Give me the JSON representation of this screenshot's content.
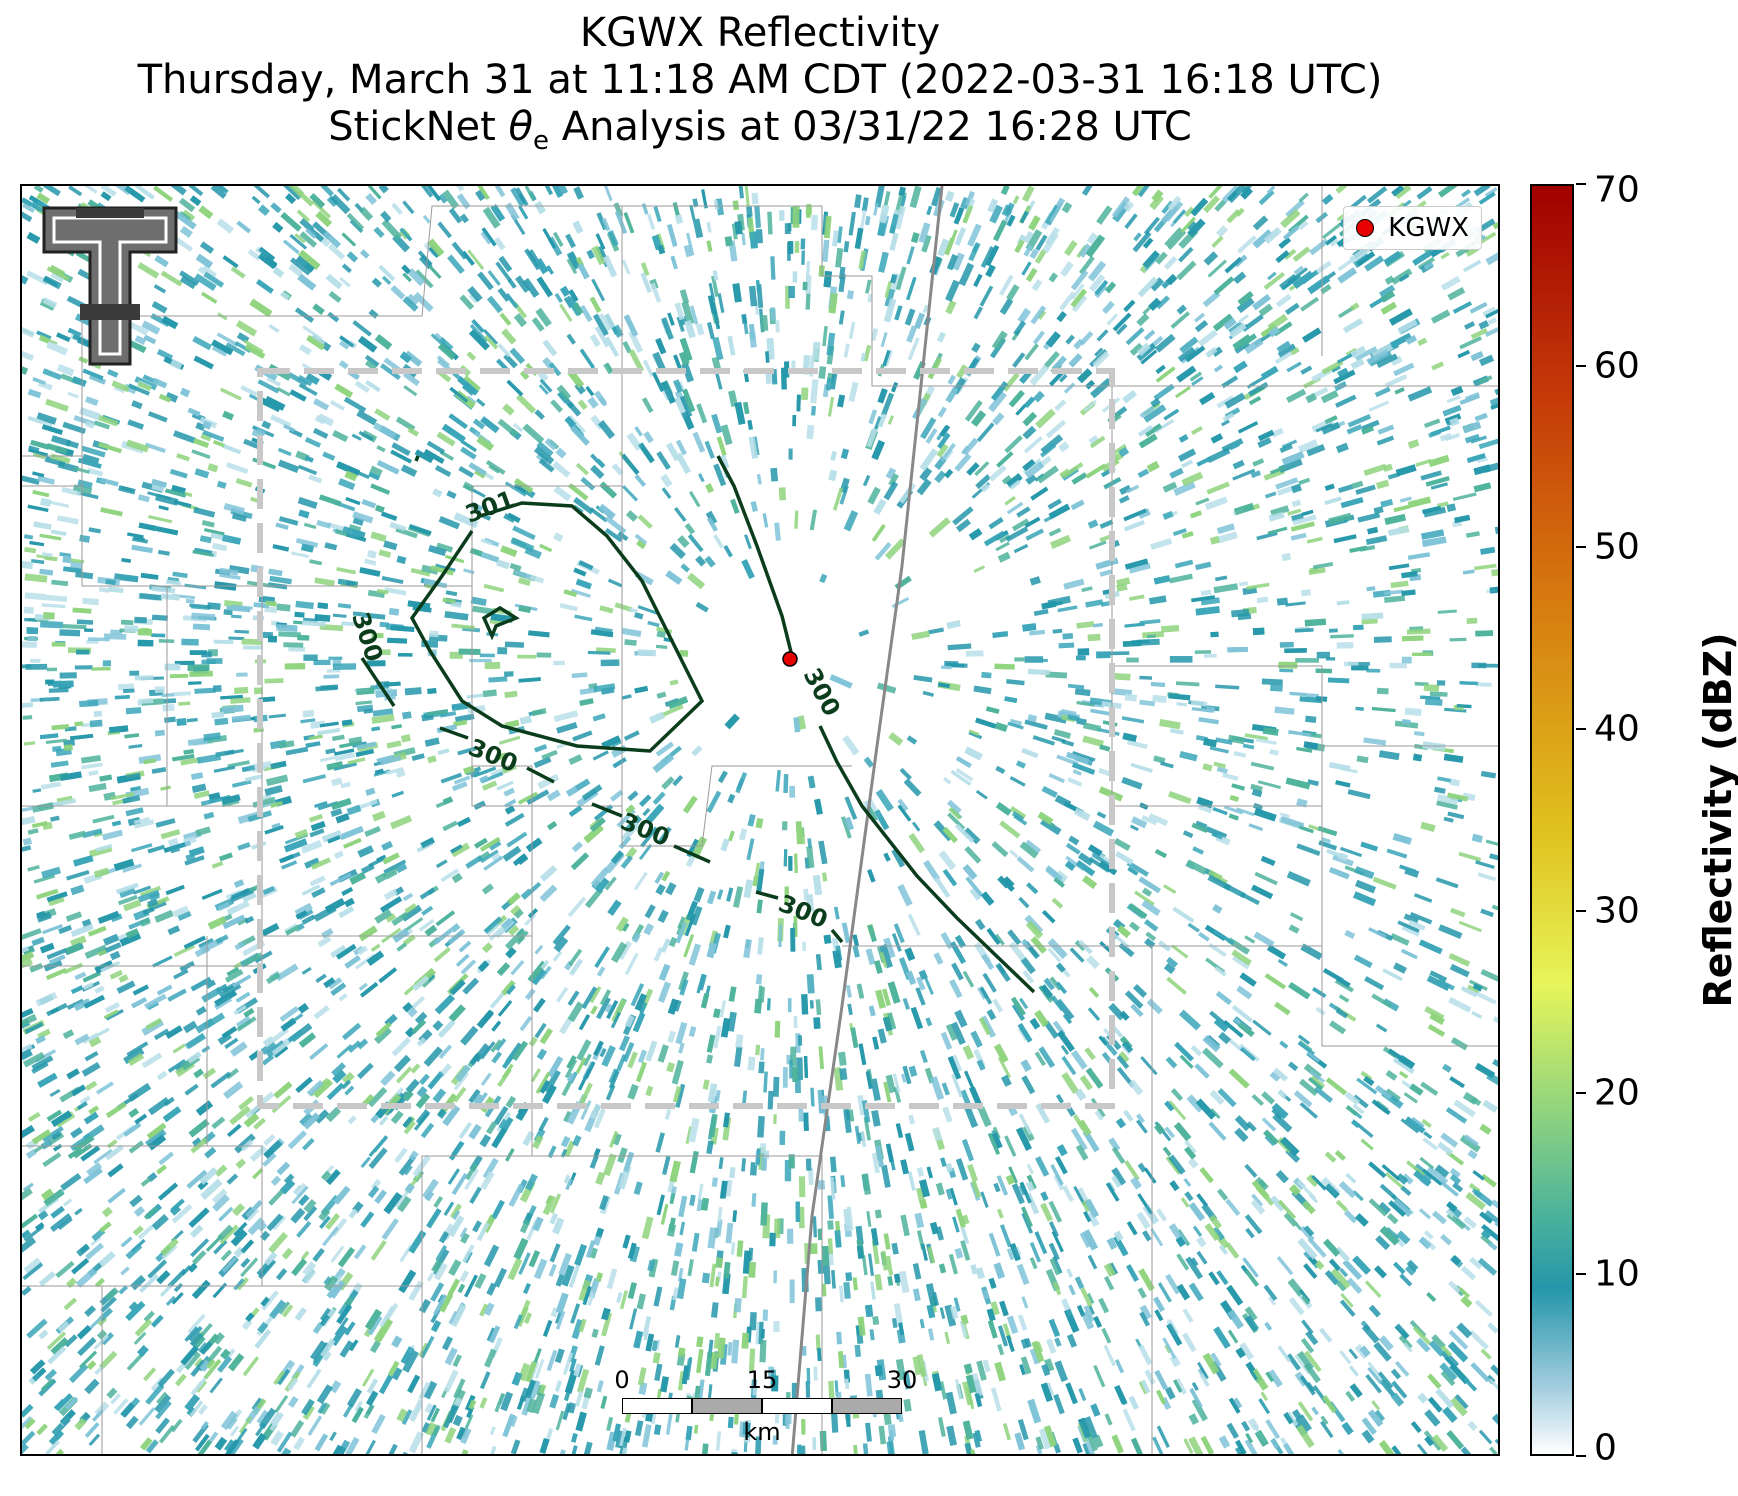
{
  "title": {
    "line1": "KGWX Reflectivity",
    "line2": "Thursday, March 31 at 11:18 AM CDT (2022-03-31 16:18 UTC)",
    "line3_prefix": "StickNet ",
    "line3_symbol": "θ",
    "line3_sub": "e",
    "line3_suffix": " Analysis at 03/31/22 16:28 UTC"
  },
  "legend": {
    "label": "KGWX",
    "marker_color": "#e60000"
  },
  "colorbar": {
    "label": "Reflectivity (dBZ)",
    "ticks": [
      "0",
      "10",
      "20",
      "30",
      "40",
      "50",
      "60",
      "70"
    ],
    "min": 0,
    "max": 70
  },
  "scalebar": {
    "ticks": [
      "0",
      "15",
      "30"
    ],
    "unit": "km"
  },
  "contours": {
    "labels": [
      "301",
      "300",
      "300",
      "300",
      "300",
      "300"
    ],
    "color": "#0b3d1d"
  },
  "colors": {
    "reflectivity_low": "#2596aa",
    "reflectivity_mid": "#4db39b",
    "reflectivity_green": "#8fd47e",
    "road": "#888888",
    "county_lines": "#9a9a9a",
    "domain_box": "#c8c8c8"
  }
}
